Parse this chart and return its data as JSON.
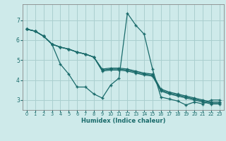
{
  "background_color": "#ceeaea",
  "grid_color": "#aacfcf",
  "line_color": "#1a6b6b",
  "marker_color": "#1a6b6b",
  "xlabel": "Humidex (Indice chaleur)",
  "xlim": [
    -0.5,
    23.5
  ],
  "ylim": [
    2.5,
    7.8
  ],
  "yticks": [
    3,
    4,
    5,
    6,
    7
  ],
  "xticks": [
    0,
    1,
    2,
    3,
    4,
    5,
    6,
    7,
    8,
    9,
    10,
    11,
    12,
    13,
    14,
    15,
    16,
    17,
    18,
    19,
    20,
    21,
    22,
    23
  ],
  "lines": [
    {
      "x": [
        0,
        1,
        2,
        3,
        4,
        5,
        6,
        7,
        8,
        9,
        10,
        11,
        12,
        13,
        14,
        15,
        16,
        17,
        18,
        19,
        20,
        21,
        22,
        23
      ],
      "y": [
        6.55,
        6.45,
        6.2,
        5.8,
        4.8,
        4.3,
        3.65,
        3.65,
        3.3,
        3.1,
        3.75,
        4.1,
        7.35,
        6.75,
        6.3,
        4.55,
        3.15,
        3.05,
        2.95,
        2.75,
        2.9,
        2.8,
        3.0,
        3.0
      ]
    },
    {
      "x": [
        0,
        1,
        2,
        3,
        4,
        5,
        6,
        7,
        8,
        9,
        10,
        11,
        12,
        13,
        14,
        15,
        16,
        17,
        18,
        19,
        20,
        21,
        22,
        23
      ],
      "y": [
        6.55,
        6.45,
        6.2,
        5.8,
        5.65,
        5.55,
        5.4,
        5.3,
        5.15,
        4.55,
        4.6,
        4.6,
        4.55,
        4.45,
        4.35,
        4.3,
        3.55,
        3.4,
        3.3,
        3.2,
        3.1,
        3.0,
        2.9,
        2.9
      ]
    },
    {
      "x": [
        0,
        1,
        2,
        3,
        4,
        5,
        6,
        7,
        8,
        9,
        10,
        11,
        12,
        13,
        14,
        15,
        16,
        17,
        18,
        19,
        20,
        21,
        22,
        23
      ],
      "y": [
        6.55,
        6.45,
        6.2,
        5.8,
        5.65,
        5.55,
        5.4,
        5.3,
        5.15,
        4.5,
        4.55,
        4.55,
        4.5,
        4.4,
        4.3,
        4.25,
        3.5,
        3.35,
        3.25,
        3.15,
        3.05,
        2.95,
        2.85,
        2.85
      ]
    },
    {
      "x": [
        0,
        1,
        2,
        3,
        4,
        5,
        6,
        7,
        8,
        9,
        10,
        11,
        12,
        13,
        14,
        15,
        16,
        17,
        18,
        19,
        20,
        21,
        22,
        23
      ],
      "y": [
        6.55,
        6.45,
        6.2,
        5.8,
        5.65,
        5.55,
        5.4,
        5.3,
        5.15,
        4.45,
        4.5,
        4.5,
        4.45,
        4.35,
        4.25,
        4.2,
        3.45,
        3.3,
        3.2,
        3.1,
        3.0,
        2.9,
        2.8,
        2.8
      ]
    }
  ]
}
